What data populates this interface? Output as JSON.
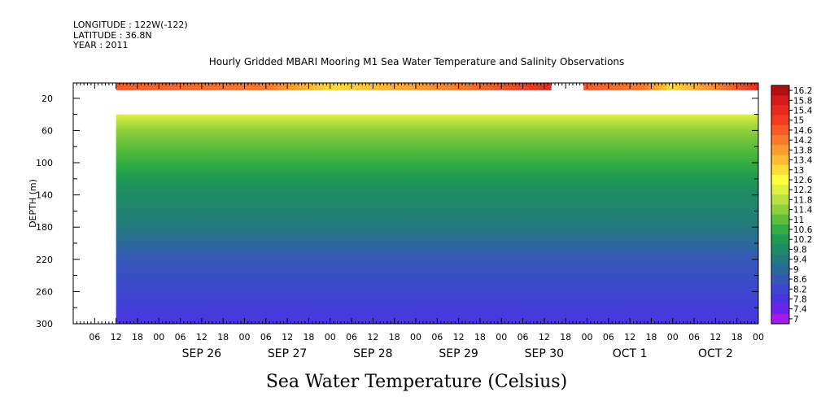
{
  "header": {
    "longitude": "LONGITUDE : 122W(-122)",
    "latitude": "LATITUDE : 36.8N",
    "year": "YEAR : 2011",
    "title": "Hourly Gridded MBARI Mooring M1 Sea Water Temperature and Salinity Observations"
  },
  "chart_data": {
    "type": "heatmap",
    "title": "Hourly Gridded MBARI Mooring M1 Sea Water Temperature and Salinity Observations",
    "xlabel": "Sea Water Temperature (Celsius)",
    "ylabel": "DEPTH (m)",
    "x_range": [
      "2011-09-25T00:00",
      "2011-10-03T00:00"
    ],
    "x_hour_ticks": [
      "06",
      "12",
      "18",
      "00",
      "06",
      "12",
      "18",
      "00",
      "06",
      "12",
      "18",
      "00",
      "06",
      "12",
      "18",
      "00",
      "06",
      "12",
      "18",
      "00",
      "06",
      "12",
      "18",
      "00",
      "06",
      "12",
      "18",
      "00",
      "06",
      "12",
      "18",
      "00"
    ],
    "x_day_labels": [
      "SEP 26",
      "SEP 27",
      "SEP 28",
      "SEP 29",
      "SEP 30",
      "OCT  1",
      "OCT  2"
    ],
    "y_range": [
      300,
      1
    ],
    "y_ticks": [
      20,
      60,
      100,
      140,
      180,
      220,
      260,
      300
    ],
    "y_inverted": true,
    "colorbar_levels": [
      "16.2",
      "15.8",
      "15.4",
      "15",
      "14.6",
      "14.2",
      "13.8",
      "13.4",
      "13",
      "12.6",
      "12.2",
      "11.8",
      "11.4",
      "11",
      "10.6",
      "10.2",
      "9.8",
      "9.4",
      "9",
      "8.6",
      "8.2",
      "7.8",
      "7.4",
      "7"
    ],
    "colorbar_colors": [
      "#b01010",
      "#d41a1a",
      "#e82a1e",
      "#f23c22",
      "#f85a28",
      "#fb7a2c",
      "#fd9c30",
      "#ffbb34",
      "#ffdd36",
      "#ffff40",
      "#e0f040",
      "#b8e040",
      "#8fcf3a",
      "#5fbe3a",
      "#34ad40",
      "#1e9a52",
      "#1e8a66",
      "#237a7e",
      "#2a6a98",
      "#3558b8",
      "#3e46d0",
      "#4a34e0",
      "#6a24e8",
      "#a21aee"
    ],
    "surface_band": {
      "depth_top": 1,
      "depth_bottom": 10,
      "range_c": [
        13,
        16.2
      ]
    },
    "data_gap_depths": [
      10,
      40
    ],
    "data_gaps_time": [
      [
        "2011-09-25T00:00",
        "2011-09-25T12:00"
      ],
      [
        "2011-09-30T14:00",
        "2011-09-30T23:00"
      ]
    ],
    "profile": [
      {
        "depth": 40,
        "temp": 12.0
      },
      {
        "depth": 60,
        "temp": 11.3
      },
      {
        "depth": 80,
        "temp": 10.6
      },
      {
        "depth": 100,
        "temp": 10.2
      },
      {
        "depth": 120,
        "temp": 9.8
      },
      {
        "depth": 140,
        "temp": 9.5
      },
      {
        "depth": 180,
        "temp": 9.0
      },
      {
        "depth": 220,
        "temp": 8.5
      },
      {
        "depth": 260,
        "temp": 8.0
      },
      {
        "depth": 300,
        "temp": 7.5
      }
    ]
  }
}
